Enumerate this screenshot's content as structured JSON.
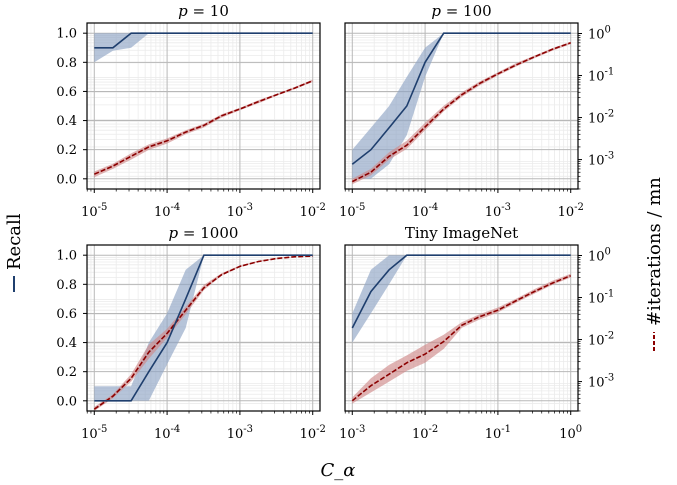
{
  "chart_data": {
    "type": "line",
    "xlabel": "C_α",
    "y_left_label": "Recall",
    "y_right_label": "#iterations / mn",
    "colors": {
      "recall": "#1f3f6e",
      "recall_band": "#8fa5c4",
      "iters": "#8b0000",
      "iters_band": "#d08a8a"
    },
    "grid": true,
    "y_left_ticks": [
      "0.0",
      "0.2",
      "0.4",
      "0.6",
      "0.8",
      "1.0"
    ],
    "y_right_ticks": [
      "10^-3",
      "10^-2",
      "10^-1",
      "10^0"
    ],
    "panels": [
      {
        "title": "p = 10",
        "title_parts": [
          "p",
          " = 10"
        ],
        "xscale": "log",
        "x_ticks": [
          "10^-5",
          "10^-4",
          "10^-3",
          "10^-2"
        ],
        "xlim_log10": [
          -5.1,
          -1.9
        ],
        "recall": {
          "x": [
            1e-05,
            1.8e-05,
            3.2e-05,
            5.6e-05,
            0.0001,
            0.001,
            0.01
          ],
          "y": [
            0.9,
            0.9,
            1.0,
            1.0,
            1.0,
            1.0,
            1.0
          ],
          "lo": [
            0.8,
            0.88,
            0.9,
            1.0,
            1.0,
            1.0,
            1.0
          ],
          "hi": [
            1.0,
            1.0,
            1.0,
            1.0,
            1.0,
            1.0,
            1.0
          ]
        },
        "iterations": {
          "x": [
            1e-05,
            1.8e-05,
            3.2e-05,
            5.6e-05,
            0.0001,
            0.00018,
            0.00032,
            0.00056,
            0.001,
            0.0018,
            0.0032,
            0.0056,
            0.01
          ],
          "y": [
            0.00045,
            0.0007,
            0.0012,
            0.002,
            0.0028,
            0.0045,
            0.0065,
            0.011,
            0.016,
            0.024,
            0.035,
            0.05,
            0.075
          ],
          "lo": [
            0.00038,
            0.0006,
            0.001,
            0.0017,
            0.0024,
            0.004,
            0.0058,
            0.01,
            0.015,
            0.022,
            0.033,
            0.047,
            0.07
          ],
          "hi": [
            0.00052,
            0.0008,
            0.0014,
            0.0023,
            0.0032,
            0.005,
            0.0072,
            0.012,
            0.017,
            0.026,
            0.037,
            0.053,
            0.08
          ]
        }
      },
      {
        "title": "p = 100",
        "title_parts": [
          "p",
          " = 100"
        ],
        "xscale": "log",
        "x_ticks": [
          "10^-5",
          "10^-4",
          "10^-3",
          "10^-2"
        ],
        "xlim_log10": [
          -5.1,
          -1.9
        ],
        "recall": {
          "x": [
            1e-05,
            1.8e-05,
            3.2e-05,
            5.6e-05,
            0.0001,
            0.00018,
            0.00032,
            0.001,
            0.01
          ],
          "y": [
            0.1,
            0.2,
            0.35,
            0.5,
            0.8,
            1.0,
            1.0,
            1.0,
            1.0
          ],
          "lo": [
            0.0,
            0.0,
            0.1,
            0.3,
            0.7,
            1.0,
            1.0,
            1.0,
            1.0
          ],
          "hi": [
            0.2,
            0.35,
            0.5,
            0.7,
            0.9,
            1.0,
            1.0,
            1.0,
            1.0
          ]
        },
        "iterations": {
          "x": [
            1e-05,
            1.8e-05,
            3.2e-05,
            5.6e-05,
            0.0001,
            0.00018,
            0.00032,
            0.00056,
            0.001,
            0.0018,
            0.0032,
            0.0056,
            0.01
          ],
          "y": [
            0.0003,
            0.0005,
            0.0012,
            0.0022,
            0.006,
            0.016,
            0.035,
            0.065,
            0.11,
            0.18,
            0.28,
            0.42,
            0.6
          ],
          "lo": [
            0.00026,
            0.00042,
            0.001,
            0.0018,
            0.005,
            0.014,
            0.031,
            0.058,
            0.1,
            0.165,
            0.26,
            0.39,
            0.56
          ],
          "hi": [
            0.00035,
            0.0006,
            0.0015,
            0.0028,
            0.0075,
            0.019,
            0.04,
            0.072,
            0.12,
            0.2,
            0.3,
            0.45,
            0.64
          ]
        }
      },
      {
        "title": "p = 1000",
        "title_parts": [
          "p",
          " = 1000"
        ],
        "xscale": "log",
        "x_ticks": [
          "10^-5",
          "10^-4",
          "10^-3",
          "10^-2"
        ],
        "xlim_log10": [
          -5.1,
          -1.9
        ],
        "recall": {
          "x": [
            1e-05,
            1.8e-05,
            3.2e-05,
            5.6e-05,
            0.0001,
            0.00018,
            0.00032,
            0.001,
            0.01
          ],
          "y": [
            0.0,
            0.0,
            0.0,
            0.2,
            0.4,
            0.7,
            1.0,
            1.0,
            1.0
          ],
          "lo": [
            0.0,
            0.0,
            0.0,
            0.0,
            0.25,
            0.5,
            1.0,
            1.0,
            1.0
          ],
          "hi": [
            0.1,
            0.1,
            0.1,
            0.4,
            0.6,
            0.9,
            1.0,
            1.0,
            1.0
          ]
        },
        "iterations": {
          "x": [
            1e-05,
            1.8e-05,
            3.2e-05,
            5.6e-05,
            0.0001,
            0.00018,
            0.00032,
            0.00056,
            0.001,
            0.0018,
            0.0032,
            0.0056,
            0.01
          ],
          "y": [
            0.00022,
            0.00045,
            0.0012,
            0.005,
            0.014,
            0.05,
            0.17,
            0.35,
            0.55,
            0.72,
            0.85,
            0.93,
            0.97
          ],
          "lo": [
            0.0002,
            0.0004,
            0.001,
            0.0035,
            0.011,
            0.04,
            0.15,
            0.33,
            0.53,
            0.7,
            0.84,
            0.92,
            0.96
          ],
          "hi": [
            0.00025,
            0.0005,
            0.0015,
            0.0075,
            0.018,
            0.06,
            0.2,
            0.38,
            0.58,
            0.75,
            0.87,
            0.94,
            0.98
          ]
        }
      },
      {
        "title": "Tiny ImageNet",
        "title_parts": [
          "",
          "Tiny ImageNet"
        ],
        "xscale": "log",
        "x_ticks": [
          "10^-3",
          "10^-2",
          "10^-1",
          "10^0"
        ],
        "xlim_log10": [
          -3.1,
          0.1
        ],
        "recall": {
          "x": [
            0.001,
            0.0018,
            0.0032,
            0.0056,
            0.01,
            0.1,
            1.0
          ],
          "y": [
            0.5,
            0.75,
            0.9,
            1.0,
            1.0,
            1.0,
            1.0
          ],
          "lo": [
            0.4,
            0.6,
            0.8,
            1.0,
            1.0,
            1.0,
            1.0
          ],
          "hi": [
            0.6,
            0.9,
            1.0,
            1.0,
            1.0,
            1.0,
            1.0
          ]
        },
        "iterations": {
          "x": [
            0.001,
            0.0018,
            0.0032,
            0.0056,
            0.01,
            0.018,
            0.032,
            0.056,
            0.1,
            0.18,
            0.32,
            0.56,
            1.0
          ],
          "y": [
            0.00035,
            0.0008,
            0.0015,
            0.0028,
            0.0045,
            0.009,
            0.022,
            0.035,
            0.05,
            0.085,
            0.14,
            0.22,
            0.33
          ],
          "lo": [
            0.0003,
            0.00055,
            0.001,
            0.0018,
            0.0028,
            0.006,
            0.019,
            0.03,
            0.044,
            0.076,
            0.125,
            0.2,
            0.3
          ],
          "hi": [
            0.00042,
            0.0012,
            0.0025,
            0.0042,
            0.0075,
            0.013,
            0.026,
            0.04,
            0.058,
            0.095,
            0.16,
            0.25,
            0.37
          ]
        }
      }
    ]
  }
}
